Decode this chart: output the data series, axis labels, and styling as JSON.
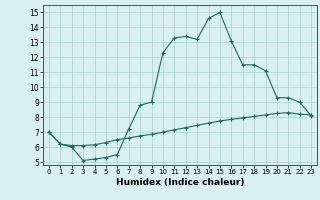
{
  "xlabel": "Humidex (Indice chaleur)",
  "background_color": "#d8f0ee",
  "line_color": "#1a6b5a",
  "grid_color": "#aacfcb",
  "xlim": [
    -0.5,
    23.5
  ],
  "ylim": [
    4.8,
    15.5
  ],
  "yticks": [
    5,
    6,
    7,
    8,
    9,
    10,
    11,
    12,
    13,
    14,
    15
  ],
  "xticks": [
    0,
    1,
    2,
    3,
    4,
    5,
    6,
    7,
    8,
    9,
    10,
    11,
    12,
    13,
    14,
    15,
    16,
    17,
    18,
    19,
    20,
    21,
    22,
    23
  ],
  "series1_x": [
    0,
    1,
    2,
    3,
    4,
    5,
    6,
    7,
    8,
    9,
    10,
    11,
    12,
    13,
    14,
    15,
    16,
    17,
    18,
    19,
    20,
    21,
    22,
    23
  ],
  "series1_y": [
    7.0,
    6.2,
    6.0,
    5.1,
    5.2,
    5.3,
    5.5,
    7.2,
    8.8,
    9.0,
    12.3,
    13.3,
    13.4,
    13.2,
    14.6,
    15.0,
    13.1,
    11.5,
    11.5,
    11.1,
    9.3,
    9.3,
    9.0,
    8.1
  ],
  "series2_x": [
    0,
    1,
    2,
    3,
    4,
    5,
    6,
    7,
    8,
    9,
    10,
    11,
    12,
    13,
    14,
    15,
    16,
    17,
    18,
    19,
    20,
    21,
    22,
    23
  ],
  "series2_y": [
    7.0,
    6.2,
    6.1,
    6.1,
    6.15,
    6.3,
    6.5,
    6.6,
    6.75,
    6.85,
    7.0,
    7.15,
    7.3,
    7.45,
    7.6,
    7.75,
    7.85,
    7.95,
    8.05,
    8.15,
    8.25,
    8.3,
    8.2,
    8.15
  ]
}
